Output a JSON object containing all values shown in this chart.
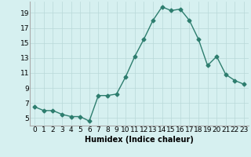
{
  "x": [
    0,
    1,
    2,
    3,
    4,
    5,
    6,
    7,
    8,
    9,
    10,
    11,
    12,
    13,
    14,
    15,
    16,
    17,
    18,
    19,
    20,
    21,
    22,
    23
  ],
  "y": [
    6.5,
    6.0,
    6.0,
    5.5,
    5.2,
    5.2,
    4.6,
    8.0,
    8.0,
    8.2,
    10.5,
    13.2,
    15.5,
    18.0,
    19.8,
    19.3,
    19.5,
    18.0,
    15.5,
    12.0,
    13.2,
    10.8,
    10.0,
    9.5
  ],
  "line_color": "#2d7d6e",
  "marker": "D",
  "marker_size": 2.5,
  "bg_color": "#d6f0f0",
  "grid_color": "#b8d8d8",
  "xlabel": "Humidex (Indice chaleur)",
  "xlim": [
    -0.5,
    23.5
  ],
  "ylim": [
    4.0,
    20.5
  ],
  "yticks": [
    5,
    7,
    9,
    11,
    13,
    15,
    17,
    19
  ],
  "xticks": [
    0,
    1,
    2,
    3,
    4,
    5,
    6,
    7,
    8,
    9,
    10,
    11,
    12,
    13,
    14,
    15,
    16,
    17,
    18,
    19,
    20,
    21,
    22,
    23
  ],
  "xlabel_fontsize": 7,
  "tick_fontsize": 6.5
}
